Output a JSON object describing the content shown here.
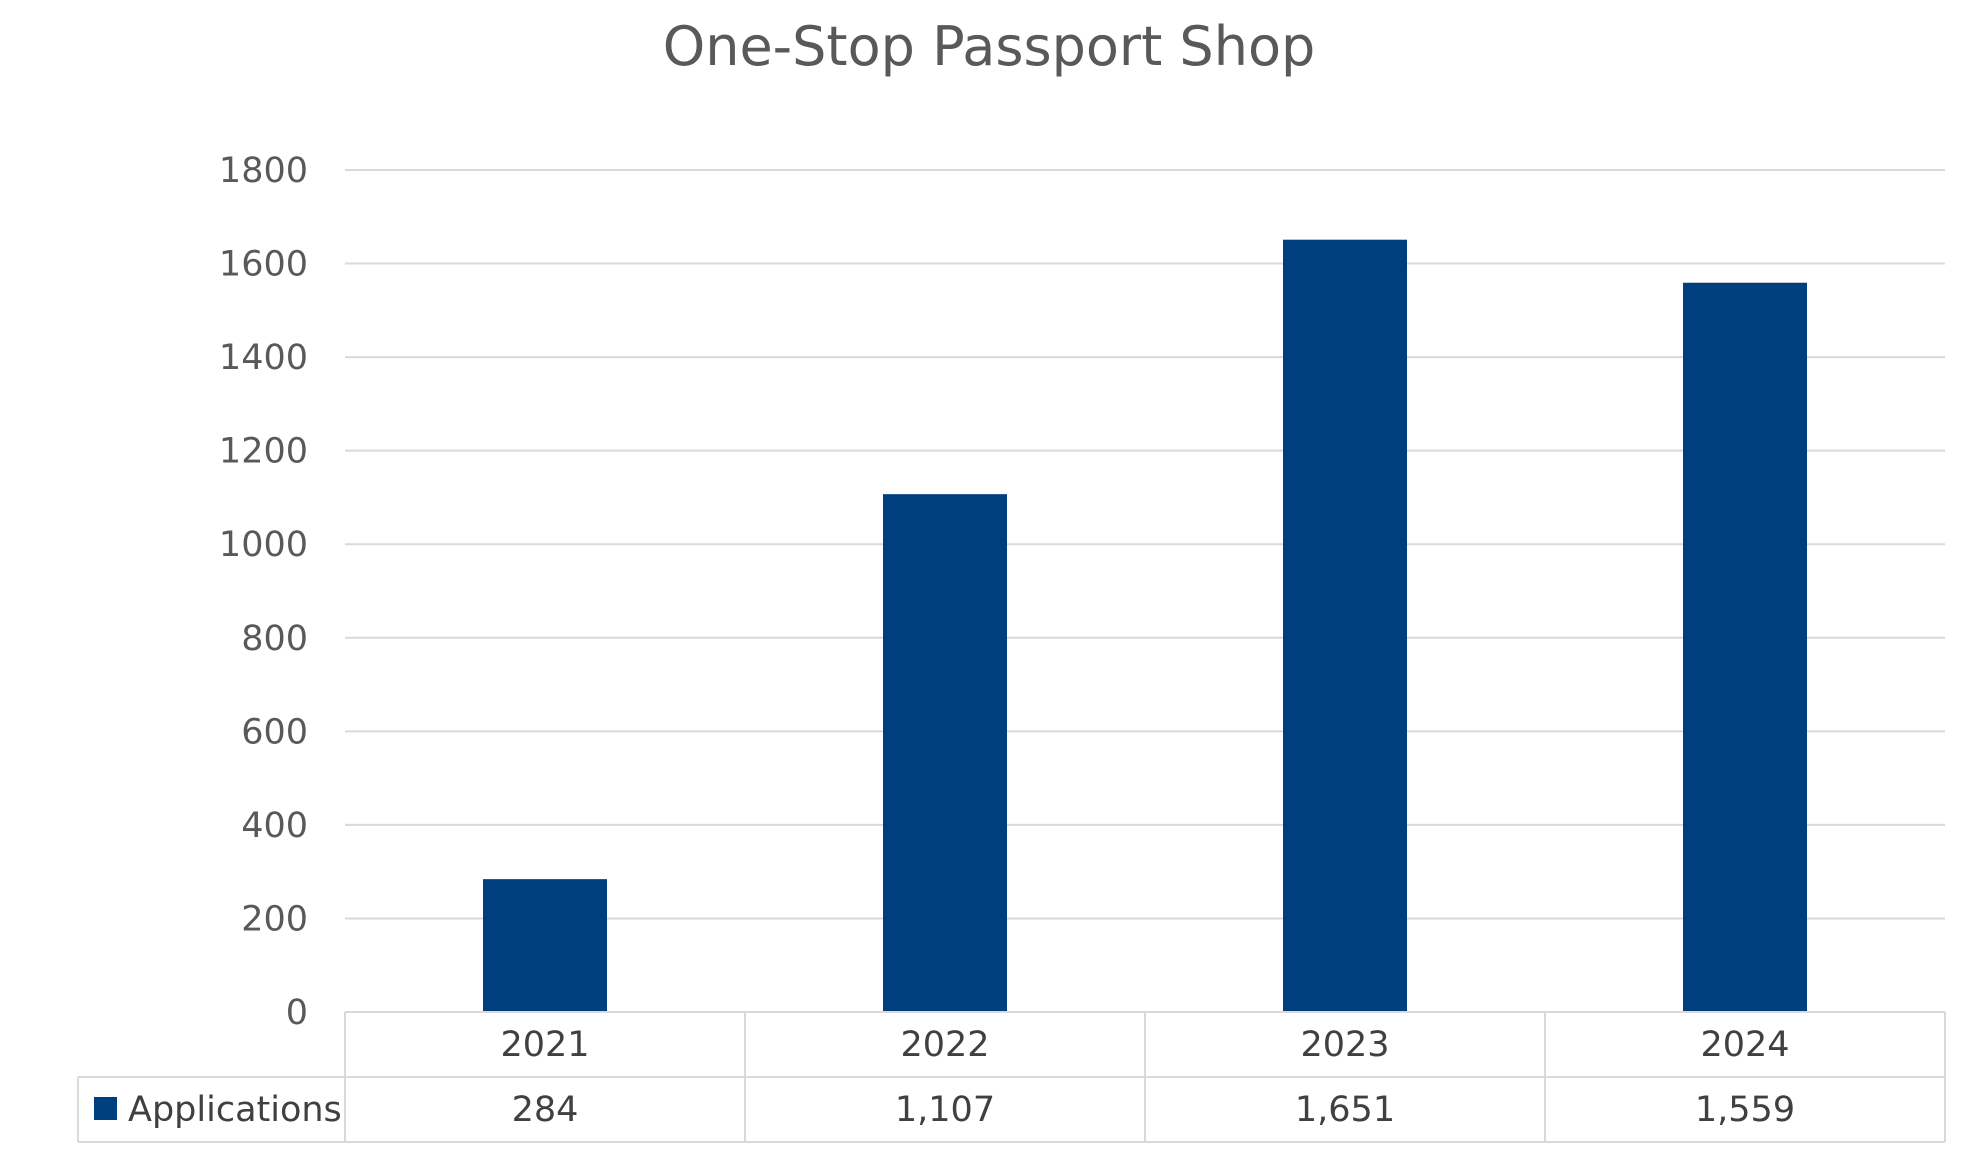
{
  "chart_data": {
    "type": "bar",
    "title": "One-Stop Passport Shop",
    "xlabel": "",
    "ylabel": "",
    "categories": [
      "2021",
      "2022",
      "2023",
      "2024"
    ],
    "series": [
      {
        "name": "Applications",
        "values": [
          284,
          1107,
          1651,
          1559
        ],
        "value_labels": [
          "284",
          "1,107",
          "1,651",
          "1,559"
        ],
        "color": "#003F7F"
      }
    ],
    "ylim": [
      0,
      1800
    ],
    "yticks": [
      0,
      200,
      400,
      600,
      800,
      1000,
      1200,
      1400,
      1600,
      1800
    ],
    "grid": true,
    "legend": "data-table-left",
    "data_table": true
  },
  "colors": {
    "bar": "#003F7F",
    "grid": "#D9D9D9",
    "text": "#595959"
  }
}
